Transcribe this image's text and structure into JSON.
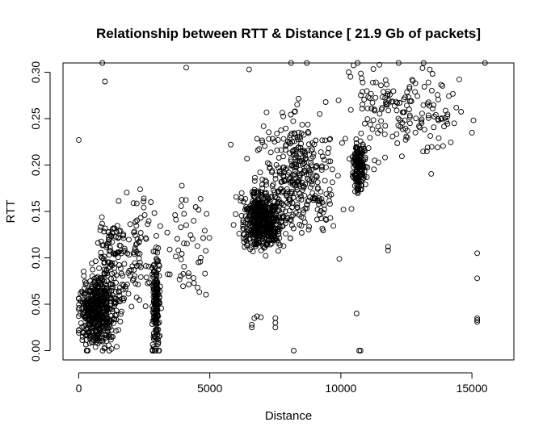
{
  "chart_data": {
    "type": "scatter",
    "title": "Relationship between RTT & Distance [ 21.9 Gb of packets]",
    "xlabel": "Distance",
    "ylabel": "RTT",
    "xlim": [
      -600,
      16600
    ],
    "ylim": [
      -0.01,
      0.31
    ],
    "xticks": [
      0,
      5000,
      10000,
      15000
    ],
    "xtick_labels": [
      "0",
      "5000",
      "10000",
      "15000"
    ],
    "yticks": [
      0.0,
      0.05,
      0.1,
      0.15,
      0.2,
      0.25,
      0.3
    ],
    "ytick_labels": [
      "0.00",
      "0.05",
      "0.10",
      "0.15",
      "0.20",
      "0.25",
      "0.30"
    ],
    "grid": false,
    "marker": "open-circle",
    "marker_color": "#000000",
    "clusters": [
      {
        "x_center": 700,
        "x_spread": 700,
        "y_center": 0.04,
        "y_spread": 0.035,
        "count": 450
      },
      {
        "x_center": 1250,
        "x_spread": 600,
        "y_center": 0.09,
        "y_spread": 0.06,
        "count": 140
      },
      {
        "x_center": 2950,
        "x_spread": 150,
        "y_center": 0.05,
        "y_spread": 0.05,
        "count": 180
      },
      {
        "x_center": 2300,
        "x_spread": 700,
        "y_center": 0.11,
        "y_spread": 0.06,
        "count": 80
      },
      {
        "x_center": 4200,
        "x_spread": 900,
        "y_center": 0.12,
        "y_spread": 0.06,
        "count": 50
      },
      {
        "x_center": 7000,
        "x_spread": 800,
        "y_center": 0.14,
        "y_spread": 0.03,
        "count": 520
      },
      {
        "x_center": 8300,
        "x_spread": 1400,
        "y_center": 0.19,
        "y_spread": 0.06,
        "count": 350
      },
      {
        "x_center": 10700,
        "x_spread": 250,
        "y_center": 0.2,
        "y_spread": 0.03,
        "count": 160
      },
      {
        "x_center": 12500,
        "x_spread": 2200,
        "y_center": 0.26,
        "y_spread": 0.05,
        "count": 170
      }
    ],
    "points": [
      [
        0,
        0.227
      ],
      [
        900,
        0.31
      ],
      [
        1000,
        0.29
      ],
      [
        4100,
        0.305
      ],
      [
        6500,
        0.303
      ],
      [
        8100,
        0.31
      ],
      [
        8700,
        0.31
      ],
      [
        12200,
        0.31
      ],
      [
        15500,
        0.31
      ],
      [
        10300,
        0.3
      ],
      [
        6700,
        0.035
      ],
      [
        6800,
        0.037
      ],
      [
        6950,
        0.036
      ],
      [
        6600,
        0.028
      ],
      [
        6600,
        0.025
      ],
      [
        7500,
        0.03
      ],
      [
        7500,
        0.035
      ],
      [
        7500,
        0.025
      ],
      [
        8200,
        0.0
      ],
      [
        10700,
        0.0
      ],
      [
        10750,
        0.0
      ],
      [
        10600,
        0.04
      ],
      [
        11800,
        0.108
      ],
      [
        11800,
        0.112
      ],
      [
        15200,
        0.105
      ],
      [
        15200,
        0.078
      ],
      [
        15200,
        0.033
      ],
      [
        15200,
        0.031
      ],
      [
        15200,
        0.035
      ],
      [
        5800,
        0.222
      ],
      [
        9600,
        0.143
      ],
      [
        10100,
        0.152
      ],
      [
        2900,
        0.0
      ],
      [
        2950,
        0.002
      ],
      [
        300,
        0.0
      ]
    ]
  }
}
